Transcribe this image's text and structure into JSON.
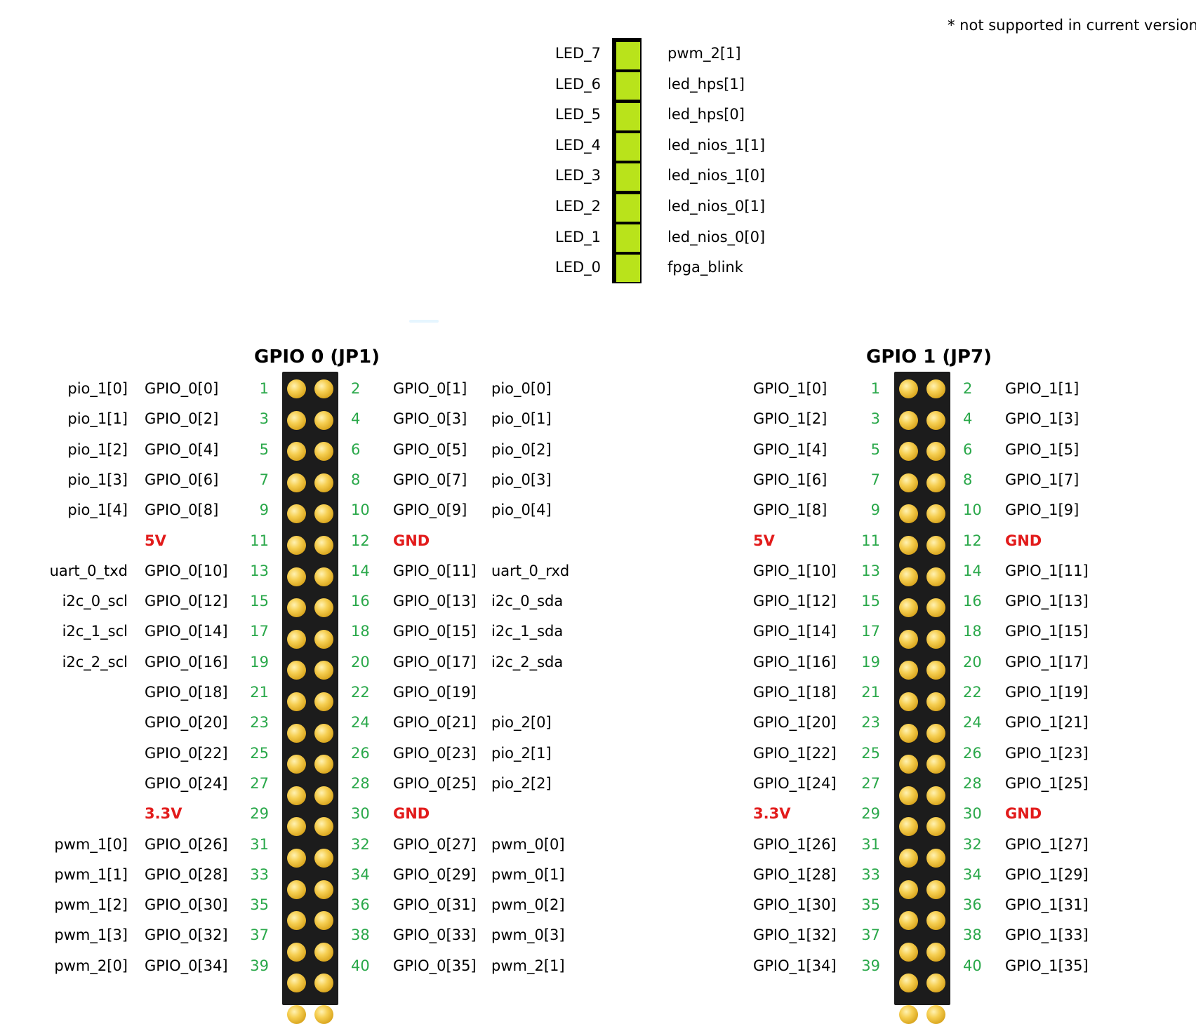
{
  "note": "* not supported in current version",
  "colors": {
    "pin_number": "#2aa84a",
    "power_label": "#e21b1b",
    "led_fill": "#b9e31b",
    "header_body": "#1c1c1c",
    "pin_gold": "#e8bb30"
  },
  "leds": [
    {
      "label": "LED_7",
      "signal": "pwm_2[1]"
    },
    {
      "label": "LED_6",
      "signal": "led_hps[1]"
    },
    {
      "label": "LED_5",
      "signal": "led_hps[0]"
    },
    {
      "label": "LED_4",
      "signal": "led_nios_1[1]"
    },
    {
      "label": "LED_3",
      "signal": "led_nios_1[0]"
    },
    {
      "label": "LED_2",
      "signal": "led_nios_0[1]"
    },
    {
      "label": "LED_1",
      "signal": "led_nios_0[0]"
    },
    {
      "label": "LED_0",
      "signal": "fpga_blink"
    }
  ],
  "gpio0": {
    "title": "GPIO 0 (JP1)",
    "rows": [
      {
        "lf": "pio_1[0]",
        "l": "GPIO_0[0]",
        "ln": "1",
        "rn": "2",
        "r": "GPIO_0[1]",
        "rf": "pio_0[0]"
      },
      {
        "lf": "pio_1[1]",
        "l": "GPIO_0[2]",
        "ln": "3",
        "rn": "4",
        "r": "GPIO_0[3]",
        "rf": "pio_0[1]"
      },
      {
        "lf": "pio_1[2]",
        "l": "GPIO_0[4]",
        "ln": "5",
        "rn": "6",
        "r": "GPIO_0[5]",
        "rf": "pio_0[2]"
      },
      {
        "lf": "pio_1[3]",
        "l": "GPIO_0[6]",
        "ln": "7",
        "rn": "8",
        "r": "GPIO_0[7]",
        "rf": "pio_0[3]"
      },
      {
        "lf": "pio_1[4]",
        "l": "GPIO_0[8]",
        "ln": "9",
        "rn": "10",
        "r": "GPIO_0[9]",
        "rf": "pio_0[4]"
      },
      {
        "lf": "",
        "l": "5V",
        "lp": true,
        "ln": "11",
        "rn": "12",
        "r": "GND",
        "rp": true,
        "rf": ""
      },
      {
        "lf": "uart_0_txd",
        "l": "GPIO_0[10]",
        "ln": "13",
        "rn": "14",
        "r": "GPIO_0[11]",
        "rf": "uart_0_rxd"
      },
      {
        "lf": "i2c_0_scl",
        "l": "GPIO_0[12]",
        "ln": "15",
        "rn": "16",
        "r": "GPIO_0[13]",
        "rf": "i2c_0_sda"
      },
      {
        "lf": "i2c_1_scl",
        "l": "GPIO_0[14]",
        "ln": "17",
        "rn": "18",
        "r": "GPIO_0[15]",
        "rf": "i2c_1_sda"
      },
      {
        "lf": "i2c_2_scl",
        "l": "GPIO_0[16]",
        "ln": "19",
        "rn": "20",
        "r": "GPIO_0[17]",
        "rf": "i2c_2_sda"
      },
      {
        "lf": "",
        "l": "GPIO_0[18]",
        "ln": "21",
        "rn": "22",
        "r": "GPIO_0[19]",
        "rf": ""
      },
      {
        "lf": "",
        "l": "GPIO_0[20]",
        "ln": "23",
        "rn": "24",
        "r": "GPIO_0[21]",
        "rf": "pio_2[0]"
      },
      {
        "lf": "",
        "l": "GPIO_0[22]",
        "ln": "25",
        "rn": "26",
        "r": "GPIO_0[23]",
        "rf": "pio_2[1]"
      },
      {
        "lf": "",
        "l": "GPIO_0[24]",
        "ln": "27",
        "rn": "28",
        "r": "GPIO_0[25]",
        "rf": "pio_2[2]"
      },
      {
        "lf": "",
        "l": "3.3V",
        "lp": true,
        "ln": "29",
        "rn": "30",
        "r": "GND",
        "rp": true,
        "rf": ""
      },
      {
        "lf": "pwm_1[0]",
        "l": "GPIO_0[26]",
        "ln": "31",
        "rn": "32",
        "r": "GPIO_0[27]",
        "rf": "pwm_0[0]"
      },
      {
        "lf": "pwm_1[1]",
        "l": "GPIO_0[28]",
        "ln": "33",
        "rn": "34",
        "r": "GPIO_0[29]",
        "rf": "pwm_0[1]"
      },
      {
        "lf": "pwm_1[2]",
        "l": "GPIO_0[30]",
        "ln": "35",
        "rn": "36",
        "r": "GPIO_0[31]",
        "rf": "pwm_0[2]"
      },
      {
        "lf": "pwm_1[3]",
        "l": "GPIO_0[32]",
        "ln": "37",
        "rn": "38",
        "r": "GPIO_0[33]",
        "rf": "pwm_0[3]"
      },
      {
        "lf": "pwm_2[0]",
        "l": "GPIO_0[34]",
        "ln": "39",
        "rn": "40",
        "r": "GPIO_0[35]",
        "rf": "pwm_2[1]"
      }
    ]
  },
  "gpio1": {
    "title": "GPIO 1 (JP7)",
    "rows": [
      {
        "l": "GPIO_1[0]",
        "ln": "1",
        "rn": "2",
        "r": "GPIO_1[1]"
      },
      {
        "l": "GPIO_1[2]",
        "ln": "3",
        "rn": "4",
        "r": "GPIO_1[3]"
      },
      {
        "l": "GPIO_1[4]",
        "ln": "5",
        "rn": "6",
        "r": "GPIO_1[5]"
      },
      {
        "l": "GPIO_1[6]",
        "ln": "7",
        "rn": "8",
        "r": "GPIO_1[7]"
      },
      {
        "l": "GPIO_1[8]",
        "ln": "9",
        "rn": "10",
        "r": "GPIO_1[9]"
      },
      {
        "l": "5V",
        "lp": true,
        "ln": "11",
        "rn": "12",
        "r": "GND",
        "rp": true
      },
      {
        "l": "GPIO_1[10]",
        "ln": "13",
        "rn": "14",
        "r": "GPIO_1[11]"
      },
      {
        "l": "GPIO_1[12]",
        "ln": "15",
        "rn": "16",
        "r": "GPIO_1[13]"
      },
      {
        "l": "GPIO_1[14]",
        "ln": "17",
        "rn": "18",
        "r": "GPIO_1[15]"
      },
      {
        "l": "GPIO_1[16]",
        "ln": "19",
        "rn": "20",
        "r": "GPIO_1[17]"
      },
      {
        "l": "GPIO_1[18]",
        "ln": "21",
        "rn": "22",
        "r": "GPIO_1[19]"
      },
      {
        "l": "GPIO_1[20]",
        "ln": "23",
        "rn": "24",
        "r": "GPIO_1[21]"
      },
      {
        "l": "GPIO_1[22]",
        "ln": "25",
        "rn": "26",
        "r": "GPIO_1[23]"
      },
      {
        "l": "GPIO_1[24]",
        "ln": "27",
        "rn": "28",
        "r": "GPIO_1[25]"
      },
      {
        "l": "3.3V",
        "lp": true,
        "ln": "29",
        "rn": "30",
        "r": "GND",
        "rp": true
      },
      {
        "l": "GPIO_1[26]",
        "ln": "31",
        "rn": "32",
        "r": "GPIO_1[27]"
      },
      {
        "l": "GPIO_1[28]",
        "ln": "33",
        "rn": "34",
        "r": "GPIO_1[29]"
      },
      {
        "l": "GPIO_1[30]",
        "ln": "35",
        "rn": "36",
        "r": "GPIO_1[31]"
      },
      {
        "l": "GPIO_1[32]",
        "ln": "37",
        "rn": "38",
        "r": "GPIO_1[33]"
      },
      {
        "l": "GPIO_1[34]",
        "ln": "39",
        "rn": "40",
        "r": "GPIO_1[35]"
      }
    ]
  }
}
